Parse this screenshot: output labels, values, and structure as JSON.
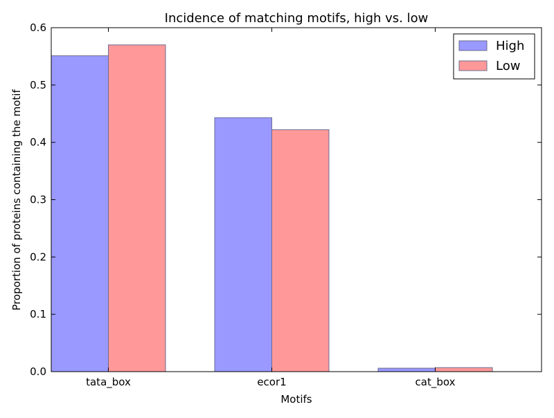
{
  "chart_data": {
    "type": "bar",
    "title": "Incidence of matching motifs, high vs. low",
    "xlabel": "Motifs",
    "ylabel": "Proportion of proteins containing the motif",
    "categories": [
      "tata_box",
      "ecor1",
      "cat_box"
    ],
    "series": [
      {
        "name": "High",
        "values": [
          0.551,
          0.443,
          0.006
        ],
        "color": "#9999ff"
      },
      {
        "name": "Low",
        "values": [
          0.57,
          0.422,
          0.007
        ],
        "color": "#ff9999"
      }
    ],
    "ylim": [
      0,
      0.6
    ],
    "yticks": [
      "0.0",
      "0.1",
      "0.2",
      "0.3",
      "0.4",
      "0.5",
      "0.6"
    ],
    "grid": false,
    "legend_position": "top-right",
    "bar_edge_color": "#6b6b8f"
  }
}
